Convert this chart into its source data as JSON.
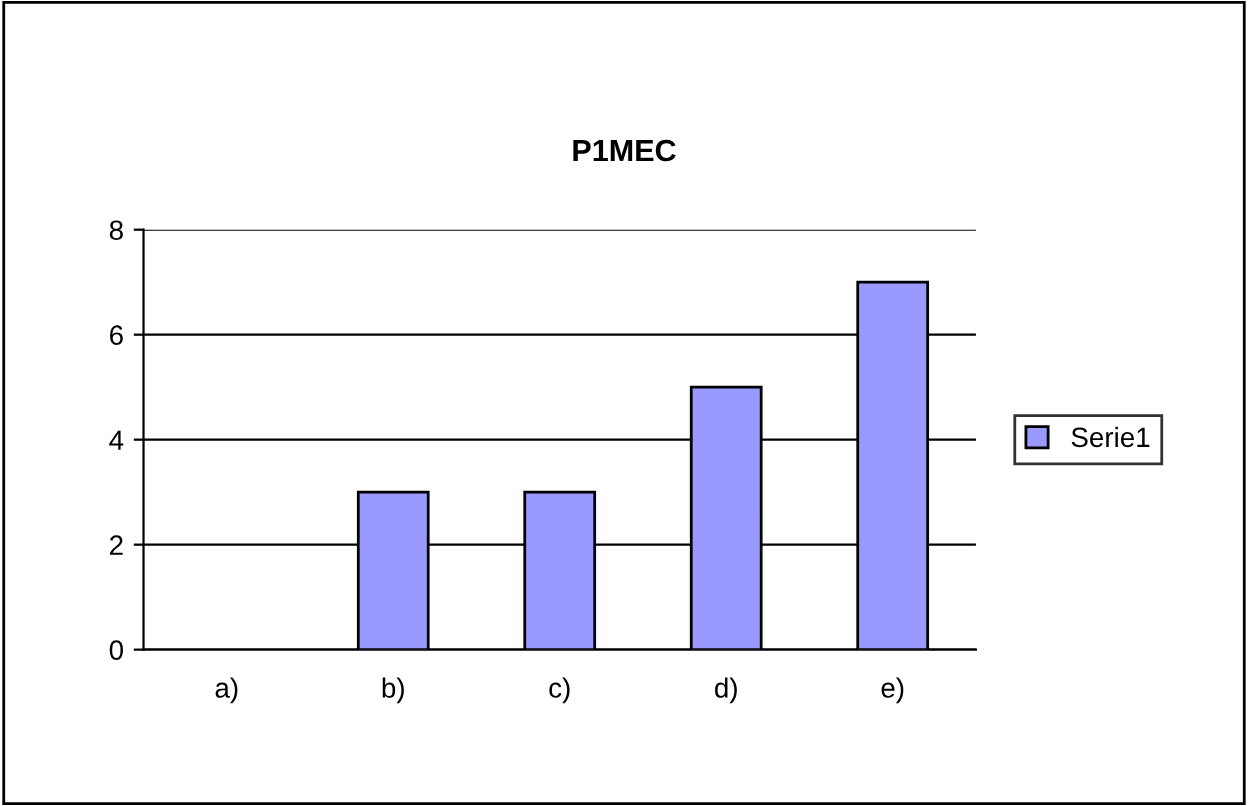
{
  "chart_data": {
    "type": "bar",
    "title": "P1MEC",
    "categories": [
      "a)",
      "b)",
      "c)",
      "d)",
      "e)"
    ],
    "series": [
      {
        "name": "Serie1",
        "color": "#9999ff",
        "values": [
          0,
          3,
          3,
          5,
          7
        ]
      }
    ],
    "ylim": [
      0,
      8
    ],
    "yticks": [
      0,
      2,
      4,
      6,
      8
    ],
    "grid": "y",
    "legend": "right"
  }
}
